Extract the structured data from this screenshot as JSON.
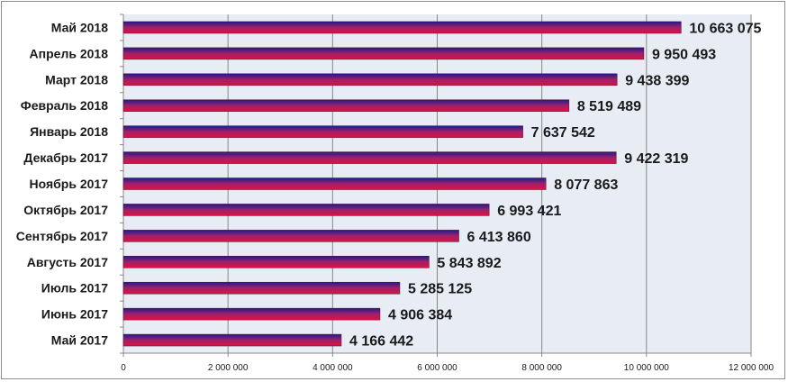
{
  "chart_data": {
    "type": "bar",
    "orientation": "horizontal",
    "categories": [
      "Май 2018",
      "Апрель 2018",
      "Март 2018",
      "Февраль 2018",
      "Январь 2018",
      "Декабрь 2017",
      "Ноябрь 2017",
      "Октябрь 2017",
      "Сентябрь 2017",
      "Августь 2017",
      "Июль 2017",
      "Июнь 2017",
      "Май 2017"
    ],
    "values": [
      10663075,
      9950493,
      9438399,
      8519489,
      7637542,
      9422319,
      8077863,
      6993421,
      6413860,
      5843892,
      5285125,
      4906384,
      4166442
    ],
    "value_labels": [
      "10 663 075",
      "9 950 493",
      "9 438 399",
      "8 519 489",
      "7 637 542",
      "9 422 319",
      "8 077 863",
      "6 993 421",
      "6 413 860",
      "5 843 892",
      "5 285 125",
      "4 906 384",
      "4 166 442"
    ],
    "xlim": [
      0,
      12000000
    ],
    "xticks": [
      0,
      2000000,
      4000000,
      6000000,
      8000000,
      10000000,
      12000000
    ],
    "xtick_labels": [
      "0",
      "2 000 000",
      "4 000 000",
      "6 000 000",
      "8 000 000",
      "10 000 000",
      "12 000 000"
    ],
    "grid": "vertical",
    "legend": "none",
    "title": "",
    "xlabel": "",
    "ylabel": ""
  },
  "colors": {
    "bar_top": "#1c1c8c",
    "bar_mid": "#a0206a",
    "bar_bottom": "#e01040",
    "plot_background": "#e8ecf5",
    "gridline": "#888888",
    "axis": "#888888"
  }
}
